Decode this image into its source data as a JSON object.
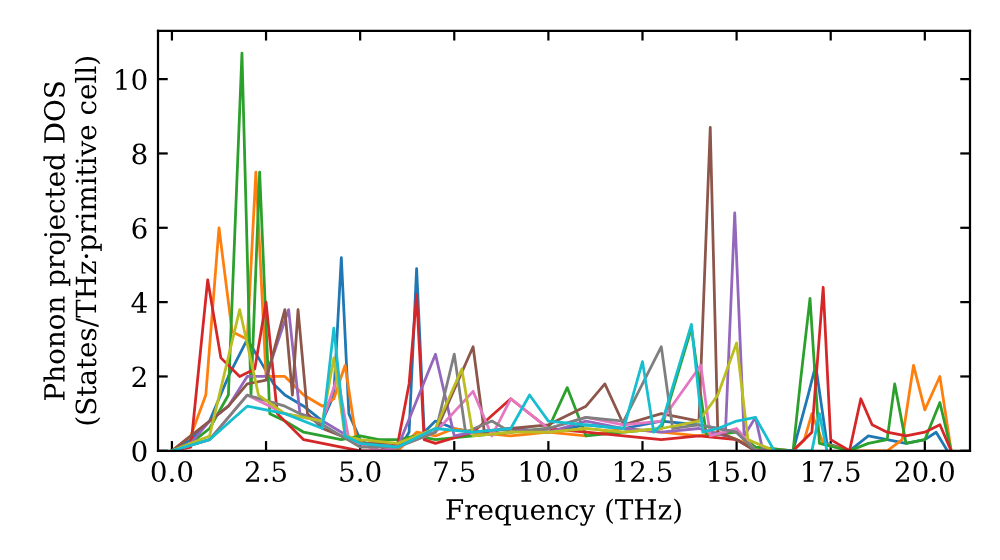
{
  "chart_data": {
    "type": "line",
    "xlabel": "Frequency (THz)",
    "ylabel": "Phonon projected DOS\n(States/THz·primitive cell)",
    "xlim": [
      -0.37,
      21.2
    ],
    "ylim": [
      0,
      11.3
    ],
    "xticks": [
      {
        "value": 0,
        "label": "0.0"
      },
      {
        "value": 2.5,
        "label": "2.5"
      },
      {
        "value": 5,
        "label": "5.0"
      },
      {
        "value": 7.5,
        "label": "7.5"
      },
      {
        "value": 10,
        "label": "10.0"
      },
      {
        "value": 12.5,
        "label": "12.5"
      },
      {
        "value": 15,
        "label": "15.0"
      },
      {
        "value": 17.5,
        "label": "17.5"
      },
      {
        "value": 20,
        "label": "20.0"
      }
    ],
    "yticks": [
      0,
      2,
      4,
      6,
      8,
      10
    ],
    "grid": false,
    "marker": "none",
    "line_style": "solid",
    "series": [
      {
        "color": "#1f77b4",
        "x": [
          0,
          0.5,
          1,
          1.5,
          2,
          2.3,
          2.7,
          3,
          3.5,
          4,
          4.3,
          4.5,
          4.7,
          5,
          5.5,
          6,
          6.3,
          6.5,
          6.7,
          7,
          7.5,
          8,
          9,
          10,
          11,
          12,
          13,
          14,
          15,
          15.5,
          16.5,
          16.9,
          17.1,
          17.4,
          18,
          18.5,
          19,
          19.5,
          20,
          20.3,
          20.6
        ],
        "values": [
          0,
          0.3,
          0.8,
          2,
          3,
          2.5,
          1.8,
          1.5,
          1.2,
          0.8,
          1.5,
          5.2,
          1,
          0.3,
          0,
          0,
          0.5,
          4.9,
          0.5,
          0.8,
          0.6,
          0.5,
          0.6,
          0.5,
          0.7,
          0.6,
          0.8,
          0.7,
          0.5,
          0,
          0,
          1.5,
          2.3,
          0.2,
          0,
          0.4,
          0.3,
          0.2,
          0.3,
          0.5,
          0
        ]
      },
      {
        "color": "#ff7f0e",
        "x": [
          0,
          0.5,
          0.9,
          1.25,
          1.6,
          2,
          2.23,
          2.5,
          3,
          3.5,
          4,
          4.3,
          4.6,
          4.9,
          5.5,
          6,
          6.5,
          7,
          7.5,
          8,
          9,
          10,
          11,
          12,
          13,
          14,
          14.5,
          15,
          15.5,
          16.5,
          16.8,
          17,
          17.3,
          18,
          19,
          19.4,
          19.7,
          20,
          20.4,
          20.7
        ],
        "values": [
          0,
          0.4,
          1.5,
          6.0,
          3.2,
          3,
          7.5,
          2,
          2,
          1.5,
          1.2,
          1.4,
          2.3,
          0.3,
          0,
          0,
          0.5,
          0.4,
          0.6,
          0.5,
          0.4,
          0.5,
          0.4,
          0.6,
          0.5,
          0.4,
          0.5,
          0.3,
          0.1,
          0,
          0.3,
          1,
          0.2,
          0,
          0,
          0.3,
          2.3,
          1.1,
          2.0,
          0
        ]
      },
      {
        "color": "#2ca02c",
        "x": [
          0,
          0.5,
          1,
          1.5,
          1.86,
          2.1,
          2.33,
          2.6,
          3,
          3.5,
          4,
          4.5,
          5,
          5.5,
          6,
          6.5,
          7,
          8,
          9,
          10,
          10.5,
          11,
          12,
          13,
          13.8,
          14.2,
          15,
          15.5,
          16.5,
          16.7,
          16.95,
          17.2,
          18,
          18.5,
          19,
          19.2,
          19.5,
          20,
          20.4,
          20.7
        ],
        "values": [
          0,
          0.2,
          0.6,
          1.5,
          10.7,
          1.5,
          7.5,
          1,
          0.8,
          0.5,
          0.4,
          0.3,
          0.4,
          0.3,
          0.3,
          0.4,
          0.3,
          0.4,
          0.5,
          0.6,
          1.7,
          0.4,
          0.5,
          0.6,
          3.3,
          0.4,
          0.5,
          0.1,
          0,
          1.9,
          4.1,
          0.2,
          0,
          0.2,
          0.3,
          1.8,
          0.2,
          0.3,
          1.3,
          0
        ]
      },
      {
        "color": "#d62728",
        "x": [
          0,
          0.5,
          0.95,
          1.3,
          1.8,
          2.2,
          2.5,
          2.8,
          3.5,
          4,
          4.5,
          5,
          5.5,
          6,
          6.3,
          6.5,
          6.7,
          7,
          8,
          9,
          10,
          11,
          12,
          13,
          14,
          15,
          15.5,
          16.5,
          17,
          17.3,
          17.5,
          18,
          18.3,
          18.6,
          19,
          19.5,
          20,
          20.4,
          20.7
        ],
        "values": [
          0,
          0.1,
          4.6,
          2.5,
          2,
          2.2,
          4.0,
          1,
          0.3,
          0.2,
          0.1,
          0,
          0,
          0.2,
          1.8,
          4.2,
          0.3,
          0.2,
          0.5,
          1.4,
          0.6,
          0.5,
          0.4,
          0.3,
          0.4,
          0.3,
          0,
          0,
          0.5,
          4.4,
          0.3,
          0,
          1.4,
          0.7,
          0.5,
          0.4,
          0.5,
          0.7,
          0
        ]
      },
      {
        "color": "#9467bd",
        "x": [
          0,
          0.5,
          1,
          1.5,
          2,
          2.5,
          3.1,
          3.4,
          4,
          5,
          6,
          7,
          7.5,
          8,
          9,
          10,
          11,
          12,
          13,
          14,
          14.7,
          14.95,
          15.2,
          15.5,
          15.7,
          16
        ],
        "values": [
          0,
          0.2,
          0.8,
          1.2,
          2,
          2,
          3.8,
          1,
          0.8,
          0.2,
          0.1,
          2.6,
          0.4,
          0.5,
          0.6,
          0.5,
          0.8,
          0.6,
          0.5,
          0.6,
          0.4,
          6.4,
          0.4,
          0.9,
          0,
          0
        ]
      },
      {
        "color": "#8c564b",
        "x": [
          0,
          0.5,
          1,
          1.5,
          2,
          2.5,
          3.0,
          3.2,
          3.35,
          3.6,
          4,
          5,
          6,
          7,
          8,
          8.3,
          9,
          10,
          11,
          11.5,
          12,
          13,
          14,
          14.3,
          14.5,
          15,
          15.5,
          16
        ],
        "values": [
          0,
          0.4,
          0.8,
          1.2,
          1.8,
          1.9,
          3.8,
          1.5,
          3.8,
          1,
          0.6,
          0.2,
          0.2,
          0.5,
          2.8,
          0.5,
          0.6,
          0.7,
          1.2,
          1.8,
          0.7,
          1,
          0.8,
          8.7,
          0.5,
          0.3,
          0,
          0
        ]
      },
      {
        "color": "#e377c2",
        "x": [
          0,
          1,
          2,
          3,
          4,
          4.4,
          4.7,
          5.5,
          6,
          7,
          8,
          8.5,
          9,
          10,
          11,
          12,
          13,
          14.05,
          14.3,
          15,
          15.5,
          16
        ],
        "values": [
          0,
          0.3,
          1.5,
          1,
          0.8,
          2,
          0.3,
          0,
          0.1,
          0.5,
          1.6,
          0.4,
          1.4,
          0.6,
          0.9,
          0.7,
          0.8,
          2.3,
          0.4,
          0.6,
          0,
          0
        ]
      },
      {
        "color": "#7f7f7f",
        "x": [
          0,
          1,
          2,
          3,
          4,
          5,
          6,
          7,
          7.5,
          7.8,
          8.5,
          9,
          10,
          11,
          12,
          13,
          13.3,
          14,
          15,
          15.5,
          16
        ],
        "values": [
          0,
          0.3,
          1.5,
          1.2,
          0.7,
          0.1,
          0.1,
          0.5,
          2.6,
          0.5,
          0.8,
          0.5,
          0.6,
          0.9,
          0.8,
          2.8,
          0.6,
          0.7,
          0.5,
          0,
          0
        ]
      },
      {
        "color": "#bcbd22",
        "x": [
          0,
          1,
          1.8,
          2.3,
          3,
          4,
          4.3,
          4.6,
          5,
          6,
          7,
          7.7,
          8,
          9,
          10,
          11,
          12,
          13,
          14,
          14.5,
          15,
          15.3,
          16
        ],
        "values": [
          0,
          0.4,
          3.8,
          1.5,
          1,
          0.8,
          2.5,
          0.4,
          0.3,
          0.2,
          0.6,
          2.2,
          0.4,
          0.5,
          0.5,
          0.6,
          0.5,
          0.6,
          0.8,
          1.5,
          2.9,
          0.3,
          0
        ]
      },
      {
        "color": "#17becf",
        "x": [
          0,
          1,
          2,
          3,
          4,
          4.3,
          4.6,
          5,
          6,
          7,
          8,
          9,
          9.5,
          10,
          11,
          12,
          12.5,
          12.8,
          13,
          13.8,
          14.1,
          14.5,
          15,
          15.5,
          16,
          17,
          17.2,
          17.4
        ],
        "values": [
          0,
          0.3,
          1.2,
          1,
          0.6,
          3.3,
          0.4,
          0.2,
          0.1,
          0.6,
          0.5,
          0.6,
          1.5,
          0.8,
          0.7,
          0.6,
          2.4,
          0.5,
          0.7,
          3.4,
          0.5,
          0.6,
          0.8,
          0.9,
          0,
          0,
          1,
          0
        ]
      }
    ]
  }
}
